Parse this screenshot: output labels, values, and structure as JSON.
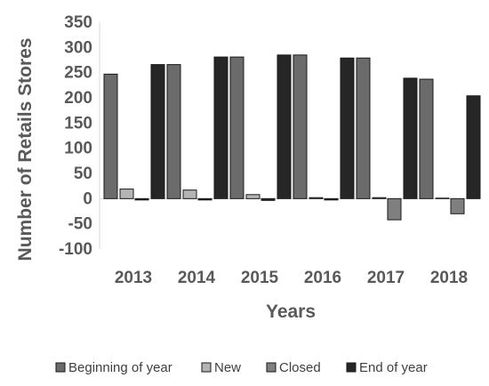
{
  "chart_data": {
    "type": "bar",
    "title": "",
    "xlabel": "Years",
    "ylabel": "Number of Retails Stores",
    "ylim": [
      -100,
      350
    ],
    "yticks": [
      -100,
      -50,
      0,
      50,
      100,
      150,
      200,
      250,
      300,
      350
    ],
    "categories": [
      "2013",
      "2014",
      "2015",
      "2016",
      "2017",
      "2018"
    ],
    "series": [
      {
        "name": "Beginning of year",
        "color": "#6b6b6b",
        "values": [
          247,
          266,
          281,
          285,
          279,
          237
        ]
      },
      {
        "name": "New",
        "color": "#b4b4b4",
        "values": [
          19,
          17,
          8,
          2,
          2,
          1
        ]
      },
      {
        "name": "Closed",
        "color": "#7f7f7f",
        "values": [
          0,
          0,
          0,
          0,
          -42,
          -30
        ]
      },
      {
        "name": "End of year",
        "color": "#262626",
        "values": [
          266,
          281,
          285,
          279,
          239,
          204
        ]
      }
    ],
    "end_of_year_offset_values": [
      -2,
      -2,
      -4,
      -2,
      0,
      0
    ],
    "grid": false,
    "legend_position": "bottom"
  }
}
